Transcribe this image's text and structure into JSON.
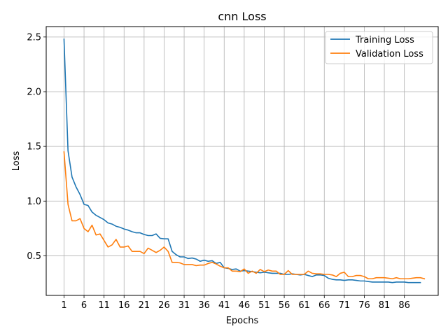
{
  "chart_data": {
    "type": "line",
    "title": "cnn Loss",
    "xlabel": "Epochs",
    "ylabel": "Loss",
    "xlim": [
      -3.45,
      94.45
    ],
    "ylim": [
      0.138,
      2.595
    ],
    "xticks": [
      1,
      6,
      11,
      16,
      21,
      26,
      31,
      36,
      41,
      46,
      51,
      56,
      61,
      66,
      71,
      76,
      81,
      86
    ],
    "yticks": [
      0.5,
      1.0,
      1.5,
      2.0,
      2.5
    ],
    "ytick_labels": [
      "0.5",
      "1.0",
      "1.5",
      "2.0",
      "2.5"
    ],
    "grid": true,
    "legend": "top-right",
    "series": [
      {
        "name": "Training Loss",
        "color": "#1f77b4",
        "x_start": 1,
        "values": [
          2.48,
          1.46,
          1.22,
          1.13,
          1.06,
          0.97,
          0.96,
          0.9,
          0.87,
          0.85,
          0.83,
          0.8,
          0.79,
          0.77,
          0.76,
          0.745,
          0.735,
          0.72,
          0.71,
          0.71,
          0.695,
          0.685,
          0.685,
          0.7,
          0.66,
          0.655,
          0.655,
          0.54,
          0.51,
          0.49,
          0.49,
          0.475,
          0.48,
          0.47,
          0.45,
          0.46,
          0.45,
          0.455,
          0.43,
          0.44,
          0.39,
          0.385,
          0.375,
          0.38,
          0.36,
          0.365,
          0.36,
          0.355,
          0.35,
          0.345,
          0.35,
          0.345,
          0.34,
          0.34,
          0.34,
          0.33,
          0.33,
          0.335,
          0.33,
          0.325,
          0.33,
          0.32,
          0.31,
          0.325,
          0.325,
          0.32,
          0.295,
          0.285,
          0.28,
          0.28,
          0.275,
          0.28,
          0.28,
          0.275,
          0.27,
          0.27,
          0.265,
          0.26,
          0.26,
          0.26,
          0.26,
          0.26,
          0.255,
          0.26,
          0.26,
          0.26,
          0.255,
          0.255,
          0.255,
          0.255
        ]
      },
      {
        "name": "Validation Loss",
        "color": "#ff7f0e",
        "x_start": 1,
        "values": [
          1.45,
          0.97,
          0.82,
          0.82,
          0.84,
          0.75,
          0.72,
          0.78,
          0.69,
          0.7,
          0.64,
          0.58,
          0.6,
          0.65,
          0.58,
          0.58,
          0.59,
          0.54,
          0.54,
          0.54,
          0.52,
          0.57,
          0.55,
          0.53,
          0.55,
          0.58,
          0.54,
          0.44,
          0.44,
          0.435,
          0.42,
          0.42,
          0.42,
          0.41,
          0.415,
          0.415,
          0.43,
          0.44,
          0.425,
          0.405,
          0.39,
          0.39,
          0.36,
          0.36,
          0.355,
          0.38,
          0.34,
          0.36,
          0.34,
          0.375,
          0.355,
          0.37,
          0.36,
          0.36,
          0.33,
          0.33,
          0.365,
          0.33,
          0.33,
          0.33,
          0.33,
          0.36,
          0.34,
          0.335,
          0.335,
          0.33,
          0.33,
          0.325,
          0.31,
          0.34,
          0.35,
          0.31,
          0.31,
          0.32,
          0.32,
          0.31,
          0.29,
          0.29,
          0.3,
          0.3,
          0.3,
          0.295,
          0.29,
          0.3,
          0.29,
          0.29,
          0.29,
          0.295,
          0.3,
          0.3,
          0.29
        ]
      }
    ]
  }
}
